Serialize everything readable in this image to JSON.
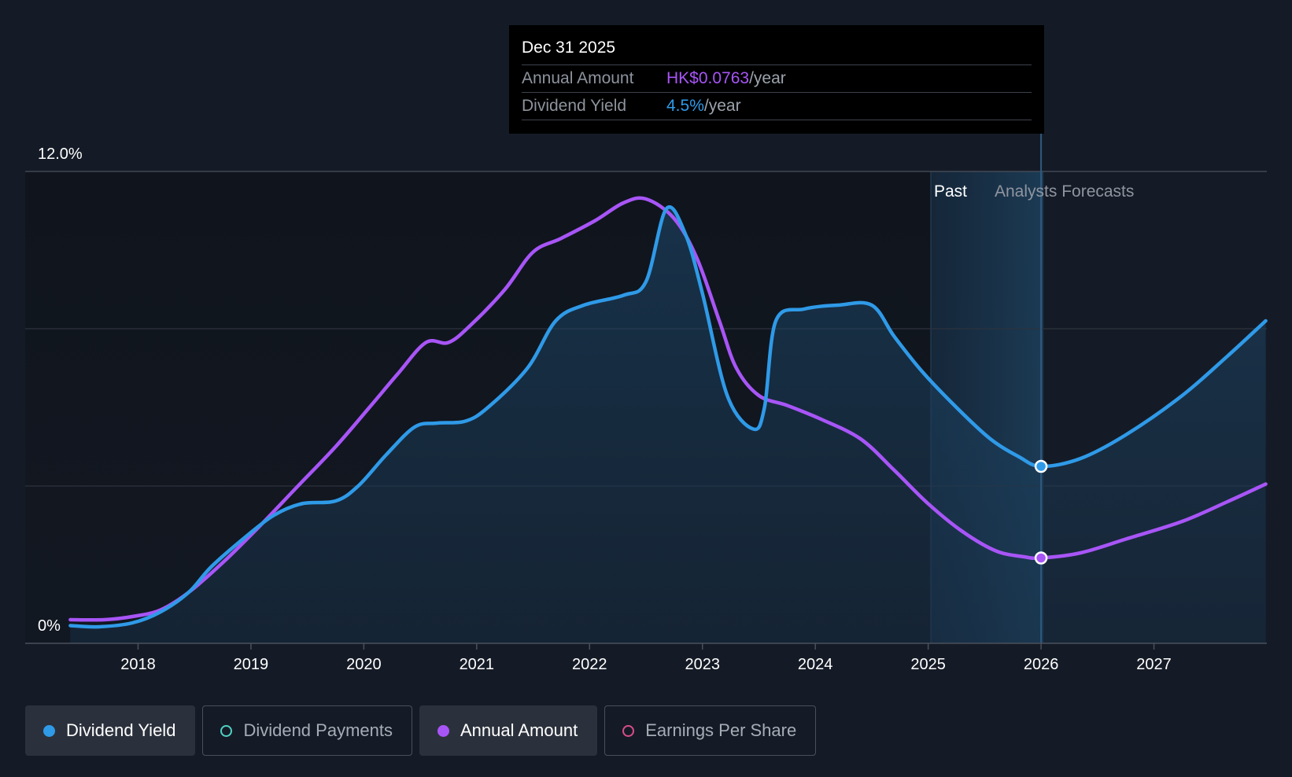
{
  "tooltip": {
    "date": "Dec 31 2025",
    "annual_label": "Annual Amount",
    "annual_value": "HK$0.0763",
    "annual_unit": "/year",
    "yield_label": "Dividend Yield",
    "yield_value": "4.5%",
    "yield_unit": "/year"
  },
  "legend": {
    "dividend_yield": "Dividend Yield",
    "dividend_payments": "Dividend Payments",
    "annual_amount": "Annual Amount",
    "earnings_per_share": "Earnings Per Share"
  },
  "colors": {
    "background": "#151b26",
    "yield": "#2f9ae8",
    "annual": "#a855f7",
    "payments": "#4fd1c5",
    "eps": "#d94d8a"
  },
  "chart_data": {
    "type": "line",
    "title": "",
    "ylim": [
      0,
      12
    ],
    "xlim": [
      2017,
      2028
    ],
    "y_tick_labels": [
      "12.0%",
      "0%"
    ],
    "x_tick_labels": [
      "2018",
      "2019",
      "2020",
      "2021",
      "2022",
      "2023",
      "2024",
      "2025",
      "2026",
      "2027"
    ],
    "region_labels": {
      "past": "Past",
      "forecast": "Analysts Forecasts"
    },
    "highlight_x": 2026.0,
    "series": [
      {
        "name": "Dividend Yield",
        "unit": "%",
        "points": [
          [
            2017.4,
            0.45
          ],
          [
            2017.65,
            0.42
          ],
          [
            2017.95,
            0.52
          ],
          [
            2018.2,
            0.8
          ],
          [
            2018.45,
            1.3
          ],
          [
            2018.65,
            1.95
          ],
          [
            2018.95,
            2.7
          ],
          [
            2019.2,
            3.25
          ],
          [
            2019.45,
            3.55
          ],
          [
            2019.75,
            3.62
          ],
          [
            2019.95,
            4.0
          ],
          [
            2020.2,
            4.8
          ],
          [
            2020.45,
            5.5
          ],
          [
            2020.65,
            5.6
          ],
          [
            2020.9,
            5.65
          ],
          [
            2021.1,
            6.0
          ],
          [
            2021.45,
            7.0
          ],
          [
            2021.7,
            8.2
          ],
          [
            2021.95,
            8.6
          ],
          [
            2022.3,
            8.85
          ],
          [
            2022.5,
            9.2
          ],
          [
            2022.68,
            11.05
          ],
          [
            2022.85,
            10.4
          ],
          [
            2023.0,
            8.9
          ],
          [
            2023.22,
            6.3
          ],
          [
            2023.45,
            5.45
          ],
          [
            2023.55,
            6.0
          ],
          [
            2023.65,
            8.2
          ],
          [
            2023.9,
            8.5
          ],
          [
            2024.2,
            8.6
          ],
          [
            2024.5,
            8.6
          ],
          [
            2024.7,
            7.8
          ],
          [
            2024.95,
            6.9
          ],
          [
            2025.25,
            6.0
          ],
          [
            2025.55,
            5.2
          ],
          [
            2025.8,
            4.75
          ],
          [
            2026.0,
            4.5
          ],
          [
            2026.35,
            4.7
          ],
          [
            2026.75,
            5.3
          ],
          [
            2027.25,
            6.3
          ],
          [
            2027.65,
            7.3
          ],
          [
            2027.99,
            8.2
          ]
        ]
      },
      {
        "name": "Annual Amount",
        "unit": "HK$",
        "points": [
          [
            2017.4,
            0.6
          ],
          [
            2017.7,
            0.6
          ],
          [
            2017.95,
            0.68
          ],
          [
            2018.2,
            0.85
          ],
          [
            2018.45,
            1.3
          ],
          [
            2018.75,
            2.05
          ],
          [
            2019.05,
            2.9
          ],
          [
            2019.4,
            3.95
          ],
          [
            2019.75,
            5.0
          ],
          [
            2020.05,
            6.0
          ],
          [
            2020.3,
            6.85
          ],
          [
            2020.55,
            7.65
          ],
          [
            2020.75,
            7.65
          ],
          [
            2020.95,
            8.1
          ],
          [
            2021.25,
            9.0
          ],
          [
            2021.5,
            9.95
          ],
          [
            2021.75,
            10.3
          ],
          [
            2022.05,
            10.75
          ],
          [
            2022.3,
            11.2
          ],
          [
            2022.5,
            11.3
          ],
          [
            2022.75,
            10.8
          ],
          [
            2022.95,
            9.8
          ],
          [
            2023.15,
            8.2
          ],
          [
            2023.3,
            7.0
          ],
          [
            2023.5,
            6.3
          ],
          [
            2023.75,
            6.05
          ],
          [
            2024.05,
            5.7
          ],
          [
            2024.4,
            5.2
          ],
          [
            2024.7,
            4.4
          ],
          [
            2025.0,
            3.55
          ],
          [
            2025.3,
            2.85
          ],
          [
            2025.6,
            2.35
          ],
          [
            2025.85,
            2.2
          ],
          [
            2026.0,
            2.17
          ],
          [
            2026.35,
            2.3
          ],
          [
            2026.75,
            2.65
          ],
          [
            2027.25,
            3.1
          ],
          [
            2027.65,
            3.6
          ],
          [
            2027.99,
            4.05
          ]
        ]
      }
    ]
  }
}
